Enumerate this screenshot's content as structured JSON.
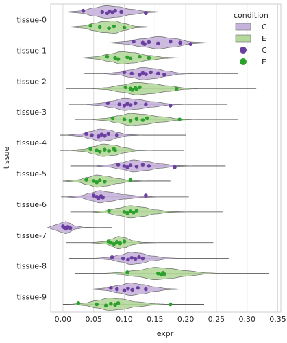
{
  "chart_data": {
    "type": "violin",
    "orientation": "horizontal",
    "categories": [
      "tissue-0",
      "tissue-1",
      "tissue-2",
      "tissue-3",
      "tissue-4",
      "tissue-5",
      "tissue-6",
      "tissue-7",
      "tissue-8",
      "tissue-9"
    ],
    "xlabel": "expr",
    "ylabel": "tissue",
    "xlim": [
      -0.02,
      0.355
    ],
    "xticks": [
      0.0,
      0.05,
      0.1,
      0.15,
      0.2,
      0.25,
      0.3,
      0.35
    ],
    "xtick_labels": [
      "0.00",
      "0.05",
      "0.10",
      "0.15",
      "0.20",
      "0.25",
      "0.30",
      "0.35"
    ],
    "grid": "vertical",
    "legend": {
      "title": "condition",
      "placement": "top-right",
      "entries": [
        {
          "label": "C",
          "kind": "violin",
          "color": "#c6b3db"
        },
        {
          "label": "E",
          "kind": "violin",
          "color": "#b5d89c"
        },
        {
          "label": "C",
          "kind": "point",
          "color": "#6a3fa0"
        },
        {
          "label": "E",
          "kind": "point",
          "color": "#2ca02c"
        }
      ]
    },
    "colors": {
      "C_fill": "#c6b3db",
      "E_fill": "#b5d89c",
      "C_point": "#6a3fa0",
      "E_point": "#2ca02c",
      "violin_edge": "#6b6b6b",
      "grid": "#d9d9d9"
    },
    "series": [
      {
        "name": "C",
        "groups": [
          {
            "category": "tissue-0",
            "range": [
              0.005,
              0.208
            ],
            "density": [
              [
                0.03,
                0.2
              ],
              [
                0.05,
                0.65
              ],
              [
                0.07,
                1.0
              ],
              [
                0.09,
                0.85
              ],
              [
                0.11,
                0.45
              ],
              [
                0.135,
                0.12
              ]
            ],
            "points": [
              0.033,
              0.064,
              0.072,
              0.076,
              0.081,
              0.085,
              0.095,
              0.135
            ]
          },
          {
            "category": "tissue-1",
            "range": [
              0.028,
              0.315
            ],
            "density": [
              [
                0.1,
                0.2
              ],
              [
                0.13,
                0.65
              ],
              [
                0.155,
                1.0
              ],
              [
                0.18,
                0.7
              ],
              [
                0.21,
                0.15
              ]
            ],
            "points": [
              0.115,
              0.13,
              0.133,
              0.14,
              0.155,
              0.175,
              0.191,
              0.208
            ]
          },
          {
            "category": "tissue-2",
            "range": [
              0.035,
              0.285
            ],
            "density": [
              [
                0.09,
                0.2
              ],
              [
                0.11,
                0.6
              ],
              [
                0.13,
                1.0
              ],
              [
                0.15,
                0.8
              ],
              [
                0.17,
                0.4
              ],
              [
                0.19,
                0.1
              ]
            ],
            "points": [
              0.1,
              0.112,
              0.125,
              0.13,
              0.135,
              0.143,
              0.155,
              0.165
            ]
          },
          {
            "category": "tissue-3",
            "range": [
              0.01,
              0.268
            ],
            "density": [
              [
                0.06,
                0.2
              ],
              [
                0.08,
                0.55
              ],
              [
                0.1,
                1.0
              ],
              [
                0.12,
                0.8
              ],
              [
                0.145,
                0.45
              ],
              [
                0.175,
                0.1
              ]
            ],
            "points": [
              0.073,
              0.092,
              0.1,
              0.105,
              0.11,
              0.118,
              0.135,
              0.175
            ]
          },
          {
            "category": "tissue-4",
            "range": [
              -0.005,
              0.2
            ],
            "density": [
              [
                0.03,
                0.2
              ],
              [
                0.045,
                0.6
              ],
              [
                0.06,
                1.0
              ],
              [
                0.075,
                0.85
              ],
              [
                0.09,
                0.4
              ],
              [
                0.105,
                0.1
              ]
            ],
            "points": [
              0.038,
              0.047,
              0.058,
              0.063,
              0.068,
              0.074,
              0.088
            ]
          },
          {
            "category": "tissue-5",
            "range": [
              0.012,
              0.265
            ],
            "density": [
              [
                0.075,
                0.2
              ],
              [
                0.095,
                0.55
              ],
              [
                0.115,
                1.0
              ],
              [
                0.135,
                0.75
              ],
              [
                0.16,
                0.35
              ],
              [
                0.185,
                0.08
              ]
            ],
            "points": [
              0.09,
              0.1,
              0.105,
              0.11,
              0.12,
              0.13,
              0.14,
              0.182
            ]
          },
          {
            "category": "tissue-6",
            "range": [
              -0.003,
              0.205
            ],
            "density": [
              [
                0.03,
                0.2
              ],
              [
                0.045,
                0.6
              ],
              [
                0.06,
                1.0
              ],
              [
                0.075,
                0.75
              ],
              [
                0.1,
                0.35
              ],
              [
                0.13,
                0.1
              ]
            ],
            "points": [
              0.05,
              0.055,
              0.058,
              0.062,
              0.065,
              0.135
            ]
          },
          {
            "category": "tissue-7",
            "range": [
              -0.001,
              0.08
            ],
            "density": [
              [
                0.0,
                0.85
              ],
              [
                0.005,
                1.0
              ],
              [
                0.01,
                0.75
              ],
              [
                0.02,
                0.25
              ],
              [
                0.035,
                0.05
              ]
            ],
            "points": [
              0.0,
              0.002,
              0.005,
              0.008,
              0.012
            ]
          },
          {
            "category": "tissue-8",
            "range": [
              0.01,
              0.27
            ],
            "density": [
              [
                0.075,
                0.2
              ],
              [
                0.095,
                0.6
              ],
              [
                0.11,
                1.0
              ],
              [
                0.125,
                0.85
              ],
              [
                0.145,
                0.4
              ],
              [
                0.17,
                0.1
              ]
            ],
            "points": [
              0.08,
              0.098,
              0.106,
              0.112,
              0.118,
              0.124,
              0.13
            ]
          },
          {
            "category": "tissue-9",
            "range": [
              0.002,
              0.285
            ],
            "density": [
              [
                0.07,
                0.2
              ],
              [
                0.09,
                0.6
              ],
              [
                0.11,
                1.0
              ],
              [
                0.13,
                0.75
              ],
              [
                0.15,
                0.35
              ],
              [
                0.17,
                0.1
              ]
            ],
            "points": [
              0.078,
              0.088,
              0.1,
              0.106,
              0.113,
              0.122,
              0.135
            ]
          }
        ]
      },
      {
        "name": "E",
        "groups": [
          {
            "category": "tissue-0",
            "range": [
              -0.015,
              0.23
            ],
            "density": [
              [
                0.035,
                0.2
              ],
              [
                0.05,
                0.6
              ],
              [
                0.065,
                0.9
              ],
              [
                0.085,
                1.0
              ],
              [
                0.1,
                0.55
              ],
              [
                0.12,
                0.12
              ]
            ],
            "points": [
              0.045,
              0.06,
              0.075,
              0.083,
              0.1
            ]
          },
          {
            "category": "tissue-1",
            "range": [
              0.008,
              0.26
            ],
            "density": [
              [
                0.055,
                0.2
              ],
              [
                0.075,
                0.6
              ],
              [
                0.095,
                1.0
              ],
              [
                0.115,
                0.85
              ],
              [
                0.14,
                0.4
              ],
              [
                0.165,
                0.1
              ]
            ],
            "points": [
              0.072,
              0.085,
              0.09,
              0.105,
              0.11,
              0.125,
              0.14
            ]
          },
          {
            "category": "tissue-2",
            "range": [
              0.005,
              0.315
            ],
            "density": [
              [
                0.07,
                0.15
              ],
              [
                0.095,
                0.55
              ],
              [
                0.12,
                1.0
              ],
              [
                0.145,
                0.8
              ],
              [
                0.17,
                0.45
              ],
              [
                0.2,
                0.1
              ]
            ],
            "points": [
              0.102,
              0.11,
              0.113,
              0.118,
              0.12,
              0.125,
              0.185
            ]
          },
          {
            "category": "tissue-3",
            "range": [
              0.02,
              0.285
            ],
            "density": [
              [
                0.07,
                0.2
              ],
              [
                0.09,
                0.6
              ],
              [
                0.11,
                1.0
              ],
              [
                0.13,
                0.85
              ],
              [
                0.16,
                0.45
              ],
              [
                0.19,
                0.1
              ]
            ],
            "points": [
              0.081,
              0.1,
              0.11,
              0.12,
              0.13,
              0.137,
              0.19
            ]
          },
          {
            "category": "tissue-4",
            "range": [
              -0.005,
              0.197
            ],
            "density": [
              [
                0.035,
                0.2
              ],
              [
                0.05,
                0.6
              ],
              [
                0.065,
                1.0
              ],
              [
                0.085,
                0.8
              ],
              [
                0.1,
                0.4
              ],
              [
                0.12,
                0.08
              ]
            ],
            "points": [
              0.045,
              0.055,
              0.06,
              0.068,
              0.075,
              0.083,
              0.085
            ]
          },
          {
            "category": "tissue-5",
            "range": [
              0.0,
              0.175
            ],
            "density": [
              [
                0.025,
                0.2
              ],
              [
                0.04,
                0.6
              ],
              [
                0.055,
                1.0
              ],
              [
                0.07,
                0.8
              ],
              [
                0.09,
                0.4
              ],
              [
                0.11,
                0.1
              ]
            ],
            "points": [
              0.038,
              0.05,
              0.055,
              0.06,
              0.068,
              0.11
            ]
          },
          {
            "category": "tissue-6",
            "range": [
              0.012,
              0.26
            ],
            "density": [
              [
                0.07,
                0.2
              ],
              [
                0.09,
                0.6
              ],
              [
                0.11,
                1.0
              ],
              [
                0.13,
                0.75
              ],
              [
                0.15,
                0.35
              ],
              [
                0.175,
                0.08
              ]
            ],
            "points": [
              0.075,
              0.1,
              0.105,
              0.11,
              0.115,
              0.12
            ]
          },
          {
            "category": "tissue-7",
            "range": [
              0.005,
              0.245
            ],
            "density": [
              [
                0.07,
                0.2
              ],
              [
                0.08,
                0.6
              ],
              [
                0.09,
                1.0
              ],
              [
                0.1,
                0.8
              ],
              [
                0.115,
                0.3
              ],
              [
                0.13,
                0.05
              ]
            ],
            "points": [
              0.074,
              0.078,
              0.083,
              0.088,
              0.093,
              0.1
            ]
          },
          {
            "category": "tissue-8",
            "range": [
              0.02,
              0.335
            ],
            "density": [
              [
                0.09,
                0.15
              ],
              [
                0.12,
                0.5
              ],
              [
                0.15,
                1.0
              ],
              [
                0.175,
                0.8
              ],
              [
                0.2,
                0.45
              ],
              [
                0.235,
                0.1
              ]
            ],
            "points": [
              0.105,
              0.155,
              0.16,
              0.163,
              0.165
            ]
          },
          {
            "category": "tissue-9",
            "range": [
              0.0,
              0.23
            ],
            "density": [
              [
                0.035,
                0.2
              ],
              [
                0.055,
                0.6
              ],
              [
                0.075,
                1.0
              ],
              [
                0.095,
                0.85
              ],
              [
                0.12,
                0.4
              ],
              [
                0.15,
                0.1
              ]
            ],
            "points": [
              0.025,
              0.055,
              0.07,
              0.078,
              0.085,
              0.09,
              0.175
            ]
          }
        ]
      }
    ]
  }
}
